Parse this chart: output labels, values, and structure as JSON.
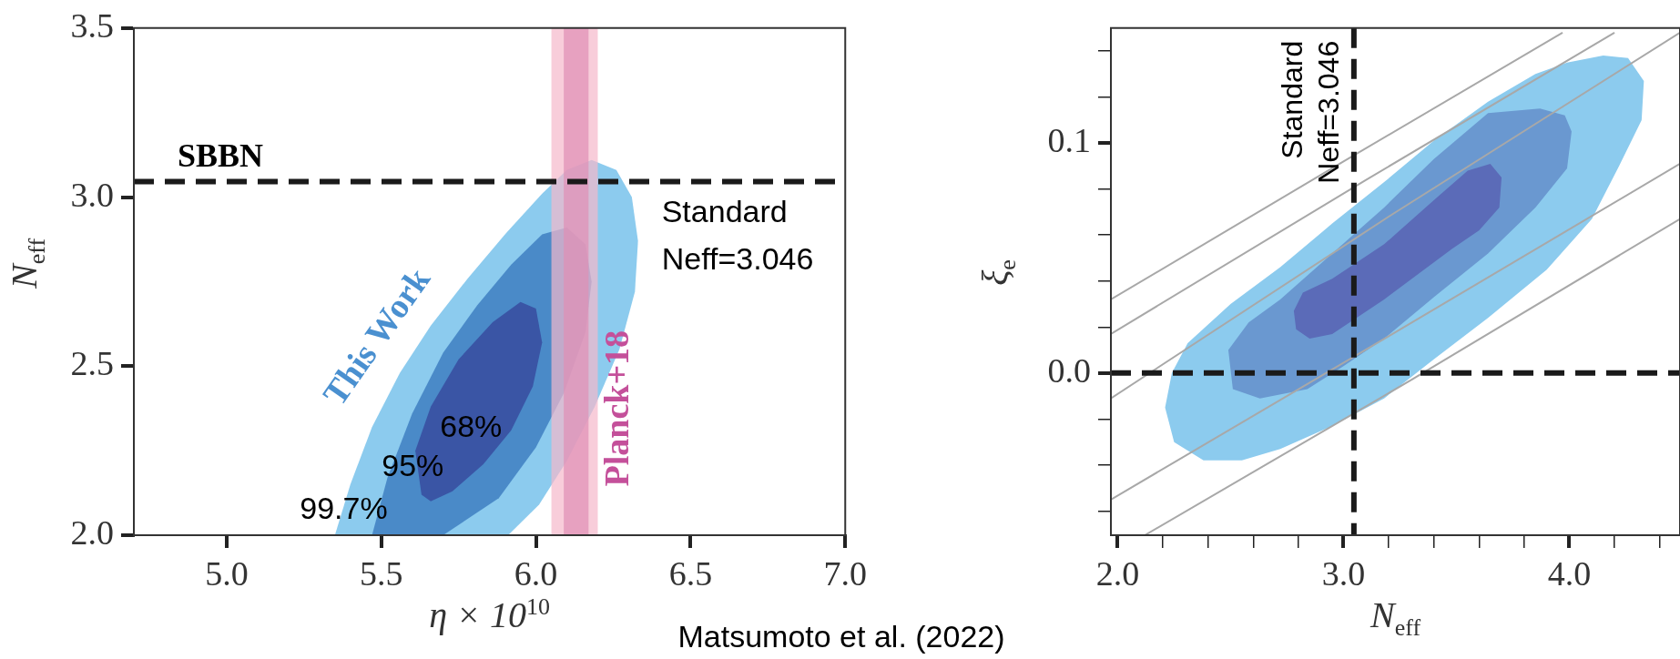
{
  "chart_data": [
    {
      "type": "area",
      "xlabel": "η × 10$^{10}$",
      "ylabel": "N$_{eff}$",
      "xlim": [
        4.7,
        7.0
      ],
      "ylim": [
        2.0,
        3.5
      ],
      "xticks": [
        {
          "value": 5.0,
          "label": "5.0"
        },
        {
          "value": 5.5,
          "label": "5.5"
        },
        {
          "value": 6.0,
          "label": "6.0"
        },
        {
          "value": 6.5,
          "label": "6.5"
        },
        {
          "value": 7.0,
          "label": "7.0"
        }
      ],
      "yticks": [
        {
          "value": 2.0,
          "label": "2.0"
        },
        2.5,
        {
          "value": 3.0,
          "label": "3.0"
        },
        3.5
      ],
      "grid": false,
      "legend": false,
      "series": [
        {
          "color": "#8ccbee",
          "x": [
            5.35,
            5.4,
            5.47,
            5.56,
            5.66,
            5.78,
            5.9,
            6.02,
            6.1,
            6.18,
            6.26,
            6.31,
            6.33,
            6.32,
            6.27,
            6.19,
            6.1,
            6.01,
            5.91,
            5.35
          ],
          "values": [
            2.0,
            2.15,
            2.32,
            2.48,
            2.62,
            2.76,
            2.89,
            3.01,
            3.08,
            3.11,
            3.08,
            3.0,
            2.87,
            2.72,
            2.55,
            2.38,
            2.22,
            2.09,
            2.0,
            2.0
          ]
        },
        {
          "color": "#4a8ac8",
          "x": [
            5.47,
            5.52,
            5.6,
            5.7,
            5.81,
            5.92,
            6.02,
            6.1,
            6.16,
            6.18,
            6.16,
            6.09,
            6.0,
            5.88,
            5.7,
            5.47
          ],
          "values": [
            2.0,
            2.17,
            2.36,
            2.54,
            2.68,
            2.8,
            2.89,
            2.91,
            2.86,
            2.75,
            2.6,
            2.42,
            2.26,
            2.11,
            2.0,
            2.0
          ]
        },
        {
          "color": "#3a55a5",
          "x": [
            5.63,
            5.61,
            5.66,
            5.75,
            5.86,
            5.95,
            6.0,
            6.02,
            5.99,
            5.92,
            5.83,
            5.73,
            5.66,
            5.63
          ],
          "values": [
            2.12,
            2.25,
            2.38,
            2.52,
            2.63,
            2.69,
            2.67,
            2.57,
            2.44,
            2.31,
            2.21,
            2.13,
            2.1,
            2.12
          ]
        }
      ],
      "bands": [
        {
          "axis": "x",
          "from": 6.05,
          "to": 6.2,
          "color": "#f5b8cb",
          "label": "Planck+18"
        },
        {
          "axis": "x",
          "from": 6.09,
          "to": 6.17,
          "color": "#e08fb5"
        }
      ],
      "ref_lines": [
        {
          "axis": "y",
          "value": 3.046,
          "label": "SBBN",
          "line_style": "dashed",
          "color": "#1a1a1a"
        }
      ],
      "annotations": [
        "This Work",
        "68%",
        "95%",
        "99.7%",
        "Standard Neff=3.046",
        "Matsumoto et al. (2022)"
      ]
    },
    {
      "type": "area",
      "xlabel": "N$_{eff}$",
      "ylabel": "ξ$_{e}$",
      "xlim": [
        1.97,
        4.49
      ],
      "ylim": [
        -0.0705,
        0.15
      ],
      "xticks": [
        {
          "value": 2.0,
          "label": "2.0"
        },
        {
          "value": 2.2,
          "label": null
        },
        {
          "value": 2.4,
          "label": null
        },
        {
          "value": 2.6,
          "label": null
        },
        {
          "value": 2.8,
          "label": null
        },
        {
          "value": 3.0,
          "label": "3.0"
        },
        {
          "value": 3.2,
          "label": null
        },
        {
          "value": 3.4,
          "label": null
        },
        {
          "value": 3.6,
          "label": null
        },
        {
          "value": 3.8,
          "label": null
        },
        {
          "value": 4.0,
          "label": "4.0"
        },
        {
          "value": 4.2,
          "label": null
        },
        {
          "value": 4.4,
          "label": null
        }
      ],
      "yticks": [
        {
          "value": -0.06,
          "label": null
        },
        {
          "value": -0.04,
          "label": null
        },
        {
          "value": -0.02,
          "label": null
        },
        {
          "value": 0.0,
          "label": "0.0"
        },
        {
          "value": 0.02,
          "label": null
        },
        {
          "value": 0.04,
          "label": null
        },
        {
          "value": 0.06,
          "label": null
        },
        {
          "value": 0.08,
          "label": null
        },
        {
          "value": 0.1,
          "label": "0.1"
        },
        {
          "value": 0.12,
          "label": null
        },
        {
          "value": 0.14,
          "label": null
        }
      ],
      "grid": false,
      "legend": false,
      "series": [
        {
          "color": "#8ccbee",
          "x": [
            2.38,
            2.25,
            2.21,
            2.24,
            2.31,
            2.5,
            2.72,
            2.95,
            3.18,
            3.4,
            3.64,
            3.85,
            3.99,
            4.15,
            4.26,
            4.33,
            4.32,
            4.22,
            4.1,
            3.9,
            3.64,
            3.4,
            3.18,
            2.95,
            2.72,
            2.55,
            2.38
          ],
          "values": [
            -0.038,
            -0.03,
            -0.015,
            0.0,
            0.013,
            0.03,
            0.046,
            0.065,
            0.083,
            0.101,
            0.118,
            0.13,
            0.135,
            0.138,
            0.137,
            0.127,
            0.11,
            0.09,
            0.067,
            0.045,
            0.024,
            0.006,
            -0.011,
            -0.023,
            -0.033,
            -0.038,
            -0.038
          ]
        },
        {
          "color": "#6a98d0",
          "x": [
            2.51,
            2.49,
            2.58,
            2.72,
            2.95,
            3.18,
            3.4,
            3.64,
            3.87,
            3.98,
            4.01,
            3.99,
            3.85,
            3.64,
            3.4,
            3.18,
            3.0,
            2.84,
            2.63,
            2.51
          ],
          "values": [
            -0.007,
            0.01,
            0.022,
            0.032,
            0.052,
            0.072,
            0.093,
            0.113,
            0.115,
            0.112,
            0.105,
            0.089,
            0.072,
            0.052,
            0.033,
            0.015,
            0.003,
            -0.007,
            -0.011,
            -0.007
          ]
        },
        {
          "color": "#5b6bb8",
          "x": [
            2.79,
            2.78,
            2.82,
            2.95,
            3.18,
            3.41,
            3.55,
            3.65,
            3.7,
            3.69,
            3.6,
            3.48,
            3.18,
            2.95,
            2.85,
            2.79
          ],
          "values": [
            0.019,
            0.027,
            0.035,
            0.041,
            0.056,
            0.076,
            0.088,
            0.091,
            0.085,
            0.072,
            0.062,
            0.054,
            0.032,
            0.017,
            0.015,
            0.019
          ]
        },
        {
          "type": "line",
          "color": "#a8a8a8",
          "x": [
            1.97,
            3.0,
            3.97
          ],
          "values": [
            0.032,
            0.092,
            0.148
          ]
        },
        {
          "type": "line",
          "color": "#a8a8a8",
          "x": [
            1.97,
            3.1,
            4.2
          ],
          "values": [
            0.017,
            0.084,
            0.148
          ]
        },
        {
          "type": "line",
          "color": "#a8a8a8",
          "x": [
            1.97,
            3.2,
            4.49
          ],
          "values": [
            -0.011,
            0.068,
            0.148
          ]
        },
        {
          "type": "line",
          "color": "#a8a8a8",
          "x": [
            1.97,
            3.2,
            4.49
          ],
          "values": [
            -0.055,
            0.016,
            0.091
          ]
        },
        {
          "type": "line",
          "color": "#a8a8a8",
          "x": [
            2.12,
            3.3,
            4.49
          ],
          "values": [
            -0.0705,
            -0.003,
            0.067
          ]
        }
      ],
      "ref_lines": [
        {
          "axis": "x",
          "value": 3.046,
          "label": "Standard Neff=3.046",
          "line_style": "dashed",
          "color": "#1a1a1a"
        },
        {
          "axis": "y",
          "value": 0.0,
          "line_style": "dashed",
          "color": "#1a1a1a"
        }
      ]
    }
  ]
}
